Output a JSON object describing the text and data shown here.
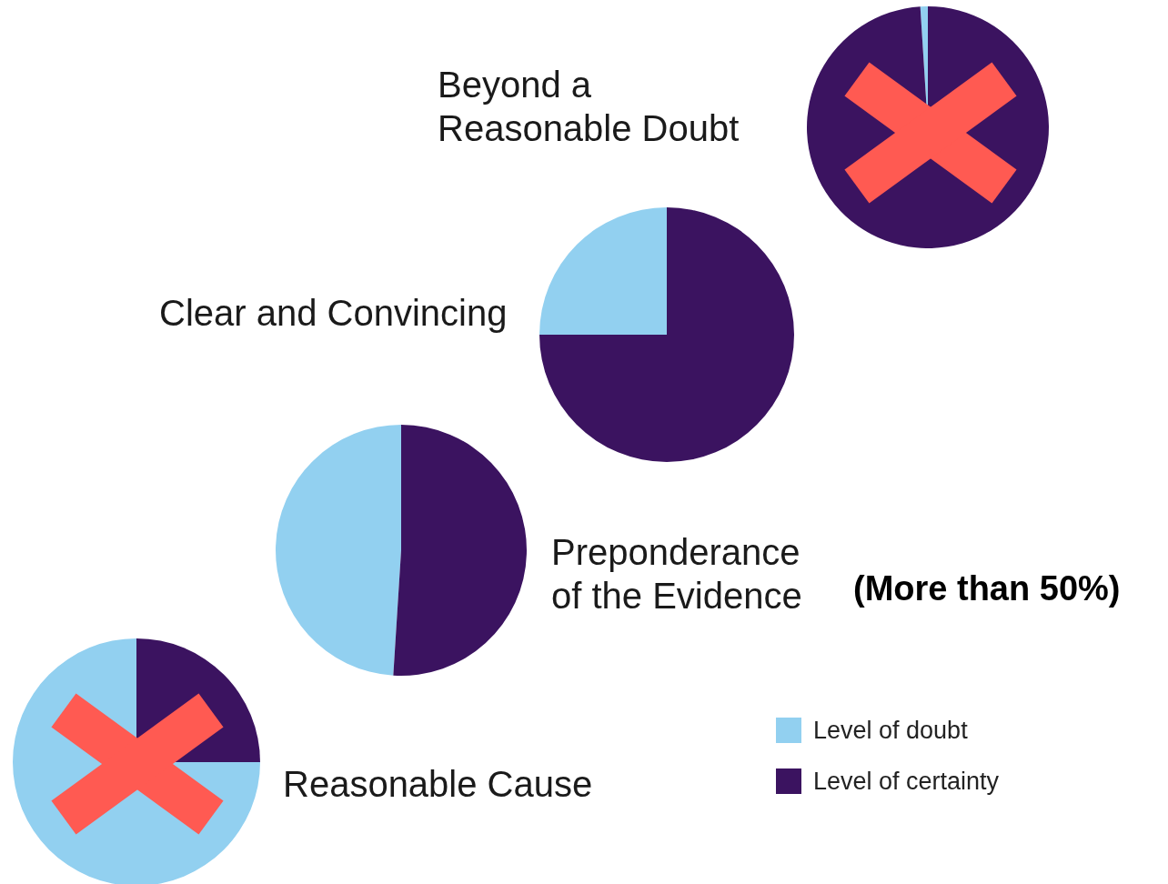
{
  "chart_data": {
    "type": "pie",
    "categories": [
      "Level of doubt",
      "Level of certainty"
    ],
    "colors": [
      "#92d0f0",
      "#3b1360"
    ],
    "legend": "bottom right",
    "series": [
      {
        "name": "Beyond a Reasonable Doubt",
        "values": [
          1,
          99
        ]
      },
      {
        "name": "Clear and Convincing",
        "values": [
          25,
          75
        ]
      },
      {
        "name": "Preponderance of the Evidence",
        "values": [
          49,
          51
        ]
      },
      {
        "name": "Reasonable Cause",
        "values": [
          75,
          25
        ]
      }
    ],
    "annotations": [
      "(More than 50%)"
    ]
  }
}
